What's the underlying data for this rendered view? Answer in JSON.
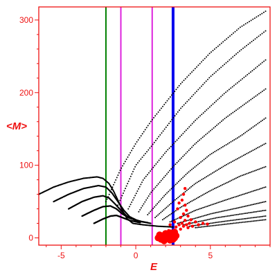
{
  "chart_data": {
    "type": "scatter",
    "xlabel": "E",
    "ylabel": "<M>",
    "xlim": [
      -6.5,
      9
    ],
    "ylim": [
      -10,
      318
    ],
    "x_ticks": [
      {
        "value": -5,
        "label": "-5"
      },
      {
        "value": 0,
        "label": "0"
      },
      {
        "value": 5,
        "label": "5"
      }
    ],
    "y_ticks": [
      {
        "value": 0,
        "label": "0"
      },
      {
        "value": 100,
        "label": "100"
      },
      {
        "value": 200,
        "label": "200"
      },
      {
        "value": 300,
        "label": "300"
      }
    ],
    "grid": false,
    "legend": "none",
    "colors": {
      "axes": "#ee1111",
      "points": "#000000",
      "highlight": "#ff0000",
      "green_line": "#008000",
      "magenta_line": "#dd22dd",
      "blue_line": "#0000ee"
    },
    "vertical_lines": [
      {
        "x": -2.0,
        "color": "green",
        "width": "thin"
      },
      {
        "x": -1.0,
        "color": "magenta",
        "width": "thin"
      },
      {
        "x": 1.1,
        "color": "magenta",
        "width": "thin"
      },
      {
        "x": 2.5,
        "color": "blue",
        "width": "thick"
      }
    ],
    "dotted_curves": [
      {
        "points": [
          [
            -2.0,
            50
          ],
          [
            -1.0,
            95
          ],
          [
            0.0,
            130
          ],
          [
            1.0,
            160
          ],
          [
            3.0,
            212
          ],
          [
            5.0,
            255
          ],
          [
            7.0,
            290
          ],
          [
            8.7,
            312
          ]
        ]
      },
      {
        "points": [
          [
            -1.2,
            45
          ],
          [
            0.0,
            100
          ],
          [
            1.0,
            125
          ],
          [
            3.0,
            178
          ],
          [
            5.0,
            222
          ],
          [
            7.0,
            258
          ],
          [
            8.7,
            285
          ]
        ]
      },
      {
        "points": [
          [
            -0.5,
            40
          ],
          [
            0.5,
            80
          ],
          [
            2.0,
            118
          ],
          [
            4.0,
            162
          ],
          [
            6.0,
            200
          ],
          [
            8.7,
            245
          ]
        ]
      },
      {
        "points": [
          [
            0.2,
            36
          ],
          [
            1.0,
            62
          ],
          [
            2.5,
            98
          ],
          [
            4.0,
            130
          ],
          [
            6.0,
            165
          ],
          [
            8.7,
            205
          ]
        ]
      },
      {
        "points": [
          [
            0.8,
            32
          ],
          [
            2.0,
            60
          ],
          [
            3.5,
            90
          ],
          [
            5.0,
            115
          ],
          [
            7.0,
            140
          ],
          [
            8.7,
            165
          ]
        ]
      },
      {
        "points": [
          [
            1.3,
            28
          ],
          [
            2.5,
            50
          ],
          [
            4.0,
            75
          ],
          [
            6.0,
            100
          ],
          [
            8.7,
            130
          ]
        ]
      },
      {
        "points": [
          [
            1.8,
            25
          ],
          [
            3.0,
            42
          ],
          [
            5.0,
            65
          ],
          [
            7.0,
            85
          ],
          [
            8.7,
            98
          ]
        ]
      },
      {
        "points": [
          [
            2.3,
            22
          ],
          [
            4.0,
            38
          ],
          [
            6.0,
            52
          ],
          [
            8.7,
            70
          ]
        ]
      },
      {
        "points": [
          [
            2.8,
            20
          ],
          [
            5.0,
            33
          ],
          [
            7.0,
            42
          ],
          [
            8.7,
            50
          ]
        ]
      },
      {
        "points": [
          [
            3.2,
            18
          ],
          [
            5.5,
            28
          ],
          [
            8.7,
            38
          ]
        ]
      },
      {
        "points": [
          [
            3.6,
            16
          ],
          [
            6.0,
            23
          ],
          [
            8.7,
            30
          ]
        ]
      },
      {
        "points": [
          [
            4.0,
            14
          ],
          [
            6.5,
            20
          ],
          [
            8.7,
            25
          ]
        ]
      }
    ],
    "solid_branches": [
      {
        "points": [
          [
            -6.5,
            60
          ],
          [
            -5.5,
            70
          ],
          [
            -4.5,
            77
          ],
          [
            -3.5,
            82
          ],
          [
            -2.6,
            84
          ],
          [
            -2.2,
            82
          ],
          [
            -1.8,
            75
          ],
          [
            -1.5,
            65
          ],
          [
            -1.2,
            52
          ],
          [
            -0.9,
            38
          ],
          [
            -0.6,
            27
          ],
          [
            -0.2,
            20
          ],
          [
            0.5,
            18
          ],
          [
            1.5,
            16
          ],
          [
            2.5,
            15
          ]
        ]
      },
      {
        "points": [
          [
            -5.5,
            50
          ],
          [
            -4.5,
            60
          ],
          [
            -3.5,
            68
          ],
          [
            -2.5,
            72
          ],
          [
            -2.0,
            70
          ],
          [
            -1.6,
            62
          ],
          [
            -1.2,
            50
          ],
          [
            -0.8,
            38
          ],
          [
            -0.4,
            29
          ],
          [
            0.2,
            23
          ],
          [
            1.0,
            20
          ]
        ]
      },
      {
        "points": [
          [
            -4.5,
            40
          ],
          [
            -3.6,
            50
          ],
          [
            -2.8,
            56
          ],
          [
            -2.2,
            58
          ],
          [
            -1.8,
            55
          ],
          [
            -1.4,
            47
          ],
          [
            -1.0,
            38
          ],
          [
            -0.6,
            30
          ],
          [
            0.0,
            24
          ],
          [
            0.8,
            21
          ]
        ]
      },
      {
        "points": [
          [
            -3.6,
            30
          ],
          [
            -2.8,
            38
          ],
          [
            -2.2,
            43
          ],
          [
            -1.7,
            44
          ],
          [
            -1.3,
            40
          ],
          [
            -0.9,
            33
          ],
          [
            -0.4,
            27
          ],
          [
            0.3,
            23
          ]
        ]
      },
      {
        "points": [
          [
            -2.8,
            20
          ],
          [
            -2.2,
            26
          ],
          [
            -1.7,
            30
          ],
          [
            -1.3,
            31
          ],
          [
            -0.9,
            28
          ],
          [
            -0.4,
            24
          ],
          [
            0.3,
            21
          ]
        ]
      }
    ],
    "highlight_points": {
      "blob": [
        [
          1.5,
          0
        ],
        [
          1.7,
          -2
        ],
        [
          1.8,
          3
        ],
        [
          1.9,
          -4
        ],
        [
          2.0,
          1
        ],
        [
          2.1,
          -1
        ],
        [
          2.2,
          4
        ],
        [
          2.3,
          -3
        ],
        [
          2.4,
          2
        ],
        [
          2.5,
          5
        ],
        [
          2.5,
          -2
        ],
        [
          2.6,
          8
        ],
        [
          2.6,
          0
        ],
        [
          2.7,
          3
        ],
        [
          1.6,
          4
        ],
        [
          2.0,
          6
        ],
        [
          2.3,
          7
        ]
      ],
      "scatter": [
        [
          2.7,
          15
        ],
        [
          2.9,
          18
        ],
        [
          3.0,
          12
        ],
        [
          3.1,
          20
        ],
        [
          3.2,
          16
        ],
        [
          3.3,
          24
        ],
        [
          3.4,
          18
        ],
        [
          3.5,
          14
        ],
        [
          3.6,
          20
        ],
        [
          3.8,
          16
        ],
        [
          4.0,
          22
        ],
        [
          4.2,
          18
        ],
        [
          4.5,
          20
        ],
        [
          3.0,
          28
        ],
        [
          3.2,
          33
        ],
        [
          3.4,
          38
        ],
        [
          3.3,
          45
        ],
        [
          3.1,
          52
        ],
        [
          3.2,
          60
        ],
        [
          3.3,
          68
        ],
        [
          2.8,
          40
        ],
        [
          2.9,
          48
        ],
        [
          3.7,
          25
        ],
        [
          4.8,
          19
        ],
        [
          3.5,
          30
        ],
        [
          2.6,
          22
        ],
        [
          2.3,
          18
        ],
        [
          2.2,
          10
        ]
      ]
    }
  }
}
